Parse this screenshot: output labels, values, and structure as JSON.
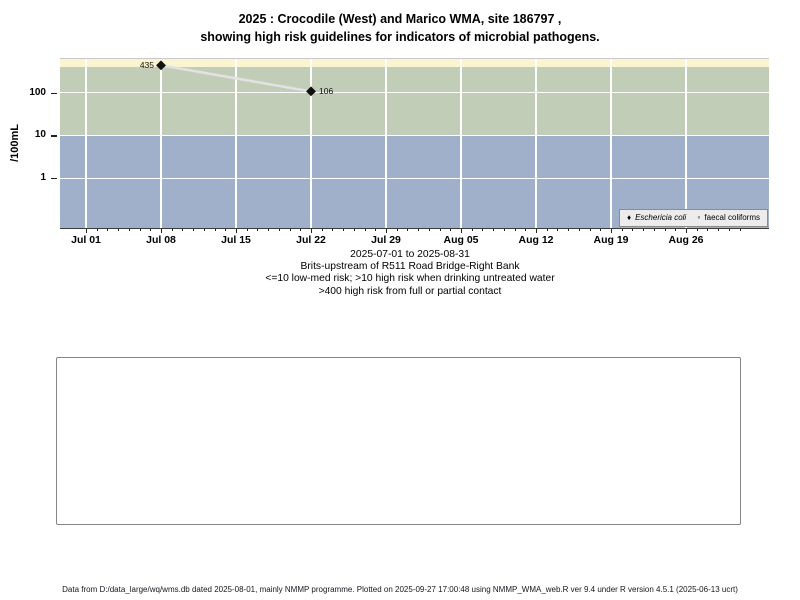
{
  "title": {
    "line1": "2025 : Crocodile (West) and Marico WMA, site 186797 ,",
    "line2": "showing high risk guidelines for indicators of microbial pathogens."
  },
  "chart_data": {
    "type": "line",
    "title": "2025 : Crocodile (West) and Marico WMA, site 186797 , showing high risk guidelines for indicators of microbial pathogens.",
    "y_axis": {
      "label": "/100mL",
      "scale": "log",
      "ticks": [
        100,
        10,
        1
      ],
      "ylim": [
        0.069,
        608
      ]
    },
    "x_axis": {
      "range_label": "2025-07-01 to 2025-08-31",
      "total_days": 61,
      "week_ticks": [
        {
          "label": "Jul 01",
          "day": 0
        },
        {
          "label": "Jul 08",
          "day": 7
        },
        {
          "label": "Jul 15",
          "day": 14
        },
        {
          "label": "Jul 22",
          "day": 21
        },
        {
          "label": "Jul 29",
          "day": 28
        },
        {
          "label": "Aug 05",
          "day": 35
        },
        {
          "label": "Aug 12",
          "day": 42
        },
        {
          "label": "Aug 19",
          "day": 49
        },
        {
          "label": "Aug 26",
          "day": 56
        }
      ]
    },
    "bands": [
      {
        "name": "high-risk-contact-band",
        "meaning": ">400 high risk from full or partial contact",
        "from": 400,
        "to": 608,
        "color": "#faf4d0"
      },
      {
        "name": "high-risk-drinking-band",
        "meaning": ">10 high risk when drinking untreated water",
        "from": 10,
        "to": 400,
        "color": "#c2cdb8"
      },
      {
        "name": "low-med-risk-band",
        "meaning": "<=10 low-med risk",
        "from": 0.069,
        "to": 10,
        "color": "#a1b0ca"
      }
    ],
    "series": [
      {
        "name": "Eschericia coli",
        "marker": "filled-diamond",
        "marker_color": "#111111",
        "line_color": "#e2e2e2",
        "points": [
          {
            "day": 7,
            "value": 435,
            "label": "435",
            "label_side": "left"
          },
          {
            "day": 21,
            "value": 106,
            "label": "106",
            "label_side": "right"
          }
        ]
      },
      {
        "name": "faecal coliforms",
        "marker": "open-circle",
        "points": []
      }
    ],
    "legend": {
      "position": "bottom-right",
      "items": [
        {
          "glyph": "♦",
          "label": "Eschericia coli"
        },
        {
          "glyph": "◦",
          "label": "faecal coliforms"
        }
      ]
    },
    "grid": "white lines on colored risk bands"
  },
  "caption": {
    "lines": [
      "2025-07-01 to 2025-08-31",
      "Brits-upstream of R511 Road Bridge-Right Bank",
      "<=10 low-med risk; >10 high risk when drinking untreated water",
      ">400 high risk from full or partial contact"
    ]
  },
  "footer": {
    "text": "Data from D:/data_large/wq/wms.db dated 2025-08-01, mainly NMMP programme. Plotted on 2025-09-27 17:00:48 using NMMP_WMA_web.R ver 9.4 under R version 4.5.1 (2025-06-13 ucrt)"
  }
}
